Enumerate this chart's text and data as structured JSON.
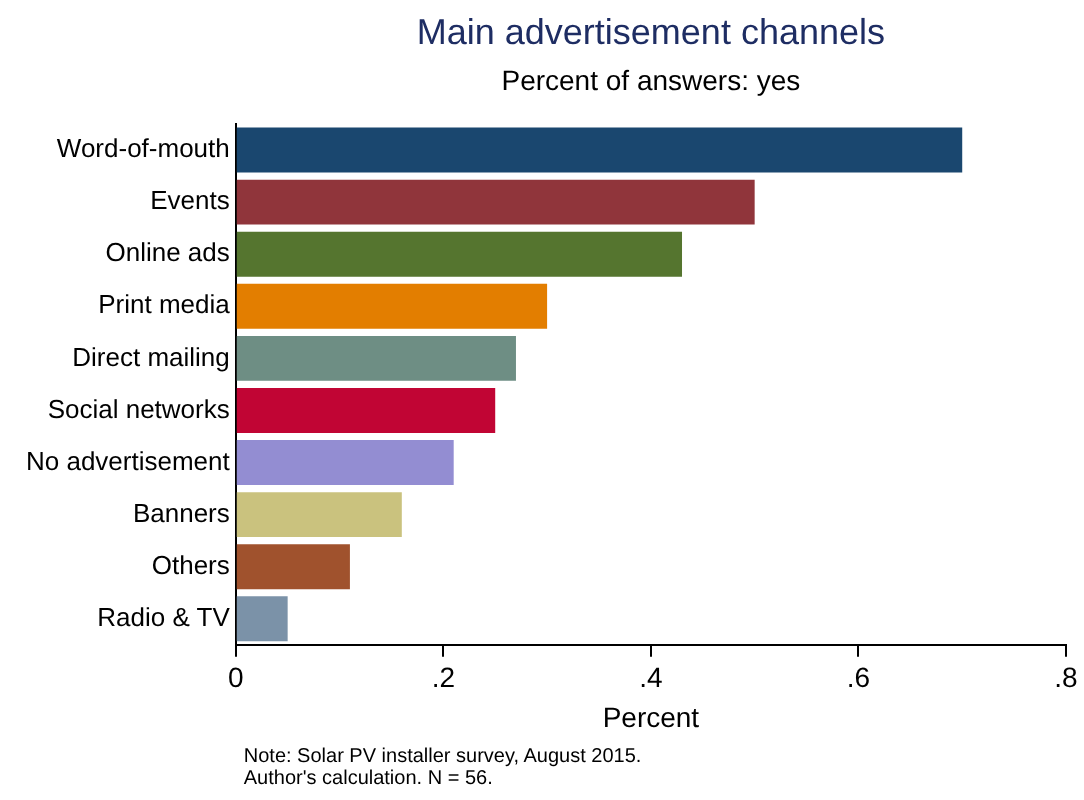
{
  "chart_data": {
    "type": "bar",
    "orientation": "horizontal",
    "title": "Main advertisement channels",
    "subtitle": "Percent of answers: yes",
    "xlabel": "Percent",
    "categories": [
      "Word-of-mouth",
      "Events",
      "Online ads",
      "Print media",
      "Direct mailing",
      "Social networks",
      "No advertisement",
      "Banners",
      "Others",
      "Radio & TV"
    ],
    "values": [
      0.7,
      0.5,
      0.43,
      0.3,
      0.27,
      0.25,
      0.21,
      0.16,
      0.11,
      0.05
    ],
    "colors": [
      "#1a476f",
      "#90353b",
      "#55752f",
      "#e37e00",
      "#6e8e84",
      "#c10534",
      "#938dd2",
      "#cac27e",
      "#a0522d",
      "#7b92a8"
    ],
    "xlim": [
      0,
      0.8
    ],
    "xticks": [
      {
        "value": 0,
        "label": "0"
      },
      {
        "value": 0.2,
        "label": ".2"
      },
      {
        "value": 0.4,
        "label": ".4"
      },
      {
        "value": 0.6,
        "label": ".6"
      },
      {
        "value": 0.8,
        "label": ".8"
      }
    ],
    "grid": false,
    "legend": false,
    "annotations": [
      "Note: Solar PV installer survey, August 2015.",
      "Author's calculation. N = 56."
    ]
  }
}
